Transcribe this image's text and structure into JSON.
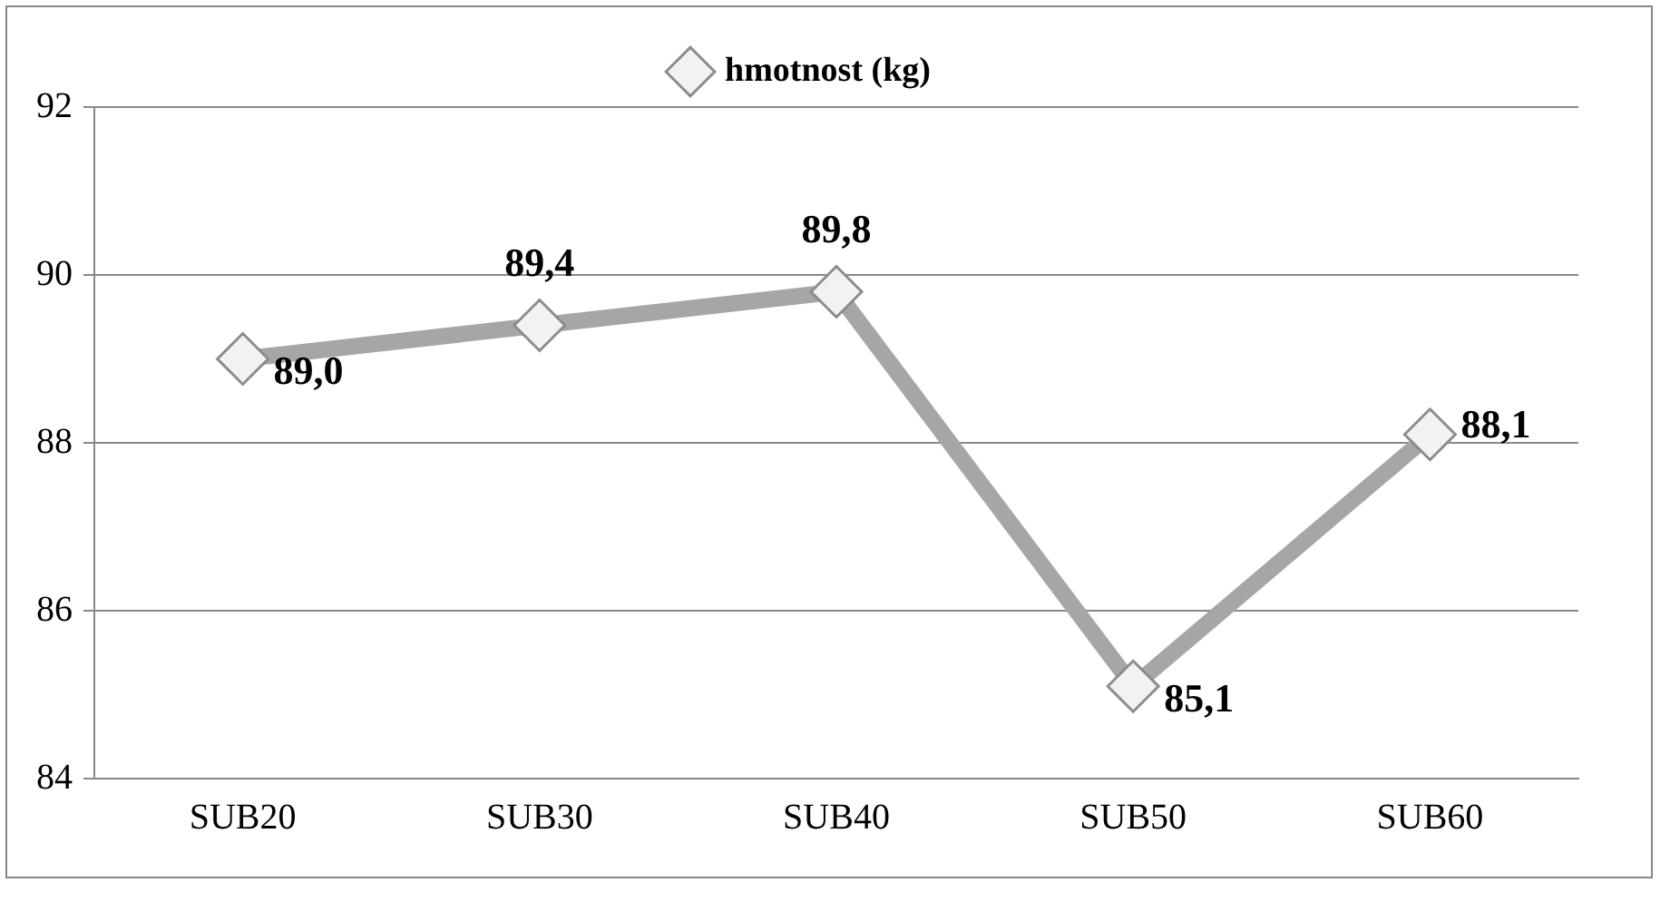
{
  "chart_data": {
    "type": "line",
    "categories": [
      "SUB20",
      "SUB30",
      "SUB40",
      "SUB50",
      "SUB60"
    ],
    "series": [
      {
        "name": "hmotnost (kg)",
        "color": "#a6a6a6",
        "values": [
          89.0,
          89.4,
          89.8,
          85.1,
          88.1
        ],
        "value_labels": [
          "89,0",
          "89,4",
          "89,8",
          "85,1",
          "88,1"
        ]
      }
    ],
    "ylim": [
      84,
      92
    ],
    "yticks": [
      84,
      86,
      88,
      90,
      92
    ],
    "grid": "y",
    "legend": "top",
    "marker": "diamond",
    "line_style": "solid"
  }
}
